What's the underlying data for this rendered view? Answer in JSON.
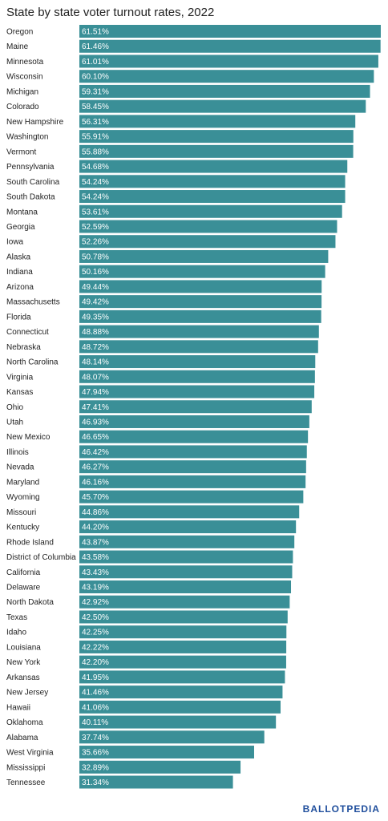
{
  "title": "State by state voter turnout rates, 2022",
  "brand": {
    "name": "BALLOTPEDIA"
  },
  "colors": {
    "bar": "#3a8f97",
    "label": "#222222",
    "value_text": "#ffffff"
  },
  "chart_data": {
    "type": "bar",
    "orientation": "horizontal",
    "title": "State by state voter turnout rates, 2022",
    "xlabel": "",
    "ylabel": "",
    "xlim": [
      0,
      61.51
    ],
    "grid": false,
    "value_suffix": "%",
    "categories": [
      "Oregon",
      "Maine",
      "Minnesota",
      "Wisconsin",
      "Michigan",
      "Colorado",
      "New Hampshire",
      "Washington",
      "Vermont",
      "Pennsylvania",
      "South Carolina",
      "South Dakota",
      "Montana",
      "Georgia",
      "Iowa",
      "Alaska",
      "Indiana",
      "Arizona",
      "Massachusetts",
      "Florida",
      "Connecticut",
      "Nebraska",
      "North Carolina",
      "Virginia",
      "Kansas",
      "Ohio",
      "Utah",
      "New Mexico",
      "Illinois",
      "Nevada",
      "Maryland",
      "Wyoming",
      "Missouri",
      "Kentucky",
      "Rhode Island",
      "District of Columbia",
      "California",
      "Delaware",
      "North Dakota",
      "Texas",
      "Idaho",
      "Louisiana",
      "New York",
      "Arkansas",
      "New Jersey",
      "Hawaii",
      "Oklahoma",
      "Alabama",
      "West Virginia",
      "Mississippi",
      "Tennessee"
    ],
    "values": [
      61.51,
      61.46,
      61.01,
      60.1,
      59.31,
      58.45,
      56.31,
      55.91,
      55.88,
      54.68,
      54.24,
      54.24,
      53.61,
      52.59,
      52.26,
      50.78,
      50.16,
      49.44,
      49.42,
      49.35,
      48.88,
      48.72,
      48.14,
      48.07,
      47.94,
      47.41,
      46.93,
      46.65,
      46.42,
      46.27,
      46.16,
      45.7,
      44.86,
      44.2,
      43.87,
      43.58,
      43.43,
      43.19,
      42.92,
      42.5,
      42.25,
      42.22,
      42.2,
      41.95,
      41.46,
      41.06,
      40.11,
      37.74,
      35.66,
      32.89,
      31.34
    ],
    "value_labels": [
      "61.51%",
      "61.46%",
      "61.01%",
      "60.10%",
      "59.31%",
      "58.45%",
      "56.31%",
      "55.91%",
      "55.88%",
      "54.68%",
      "54.24%",
      "54.24%",
      "53.61%",
      "52.59%",
      "52.26%",
      "50.78%",
      "50.16%",
      "49.44%",
      "49.42%",
      "49.35%",
      "48.88%",
      "48.72%",
      "48.14%",
      "48.07%",
      "47.94%",
      "47.41%",
      "46.93%",
      "46.65%",
      "46.42%",
      "46.27%",
      "46.16%",
      "45.70%",
      "44.86%",
      "44.20%",
      "43.87%",
      "43.58%",
      "43.43%",
      "43.19%",
      "42.92%",
      "42.50%",
      "42.25%",
      "42.22%",
      "42.20%",
      "41.95%",
      "41.46%",
      "41.06%",
      "40.11%",
      "37.74%",
      "35.66%",
      "32.89%",
      "31.34%"
    ]
  }
}
